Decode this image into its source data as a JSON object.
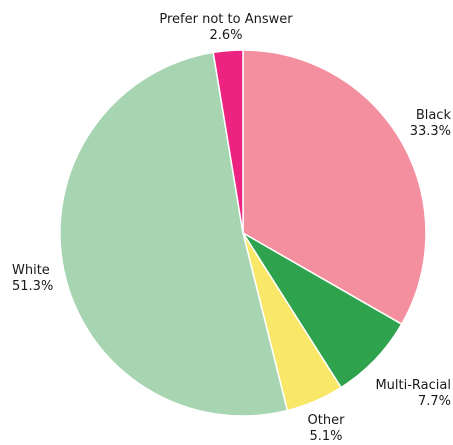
{
  "chart_data": {
    "type": "pie",
    "start_angle_deg": 0,
    "direction": "clockwise",
    "slices": [
      {
        "label": "Black",
        "percent_label": "33.3%",
        "value": 33.3,
        "color": "#f48fa0"
      },
      {
        "label": "Multi-Racial",
        "percent_label": "7.7%",
        "value": 7.7,
        "color": "#2fa24e"
      },
      {
        "label": "Other",
        "percent_label": "5.1%",
        "value": 5.1,
        "color": "#f9e867"
      },
      {
        "label": "White",
        "percent_label": "51.3%",
        "value": 51.3,
        "color": "#a8d5b1"
      },
      {
        "label": "Prefer not to Answer",
        "percent_label": "2.6%",
        "value": 2.6,
        "color": "#ec2380"
      }
    ]
  }
}
